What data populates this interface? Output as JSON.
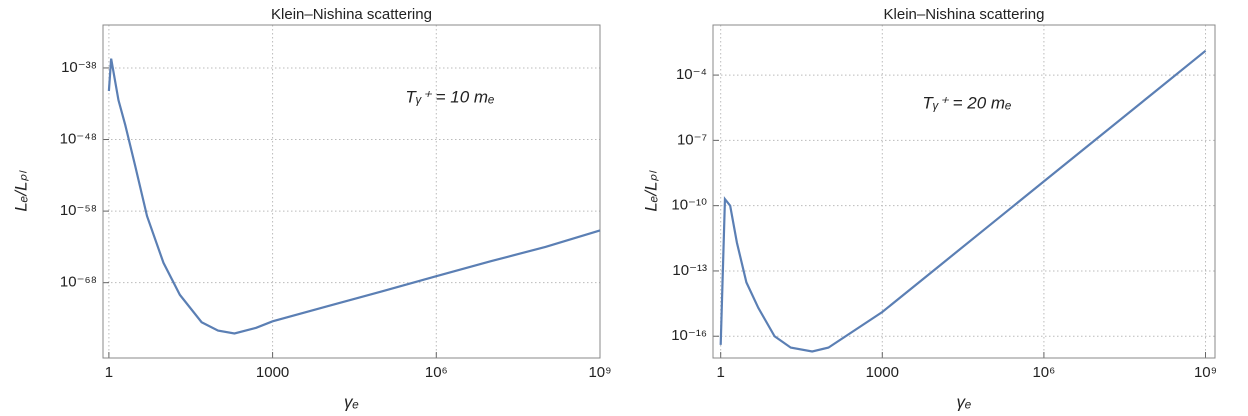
{
  "chart_data": [
    {
      "type": "line",
      "title": "Klein–Nishina scattering",
      "xlabel": "γₑ",
      "ylabel": "Lₑ/Lₚₗ",
      "annotation": "Tᵧ⁺ = 10 mₑ",
      "xscale": "log",
      "yscale": "log",
      "grid": true,
      "x": [
        1,
        1.1,
        1.5,
        2,
        3,
        5,
        10,
        20,
        50,
        100,
        200,
        500,
        1000,
        10000,
        100000,
        1000000,
        10000000,
        100000000,
        1000000000
      ],
      "series": [
        {
          "color": "#5b7fb4",
          "values": [
            6e-42,
            2e-37,
            3e-43,
            1e-46,
            3e-52,
            2e-59,
            6e-66,
            2e-70,
            3e-74,
            2e-75,
            8e-76,
            5e-75,
            4e-74,
            5e-72,
            6e-70,
            8e-68,
            1e-65,
            1e-63,
            2e-61
          ]
        }
      ],
      "xlim": [
        0.78,
        1000000000
      ],
      "ylim": [
        3e-79,
        1e-32
      ],
      "xticks": [
        1,
        1000,
        {
          "value": 1000000,
          "label": "10⁶"
        },
        {
          "value": 1000000000,
          "label": "10⁹"
        }
      ],
      "yticks": [
        {
          "value": 1e-38,
          "label": "10⁻³⁸"
        },
        {
          "value": 1e-48,
          "label": "10⁻⁴⁸"
        },
        {
          "value": 1e-58,
          "label": "10⁻⁵⁸"
        },
        {
          "value": 1e-68,
          "label": "10⁻⁶⁸"
        }
      ]
    },
    {
      "type": "line",
      "title": "Klein–Nishina scattering",
      "xlabel": "γₑ",
      "ylabel": "Lₑ/Lₚₗ",
      "annotation": "Tᵧ⁺ = 20 mₑ",
      "xscale": "log",
      "yscale": "log",
      "grid": true,
      "x": [
        1,
        1.2,
        1.5,
        2,
        3,
        5,
        10,
        20,
        50,
        100,
        1000,
        10000,
        100000,
        1000000,
        10000000,
        100000000,
        1000000000
      ],
      "series": [
        {
          "color": "#5b7fb4",
          "values": [
            4e-17,
            2e-10,
            1e-10,
            2e-12,
            3e-14,
            2e-15,
            1e-16,
            3e-17,
            2e-17,
            3e-17,
            1.3e-15,
            1.3e-13,
            1.3e-11,
            1.3e-09,
            1.3e-07,
            1.3e-05,
            0.0013
          ]
        }
      ],
      "xlim": [
        0.72,
        1500000000
      ],
      "ylim": [
        1e-17,
        0.02
      ],
      "xticks": [
        1,
        1000,
        {
          "value": 1000000,
          "label": "10⁶"
        },
        {
          "value": 1000000000,
          "label": "10⁹"
        }
      ],
      "yticks": [
        {
          "value": 0.0001,
          "label": "10⁻⁴"
        },
        {
          "value": 1e-07,
          "label": "10⁻⁷"
        },
        {
          "value": 1e-10,
          "label": "10⁻¹⁰"
        },
        {
          "value": 1e-13,
          "label": "10⁻¹³"
        },
        {
          "value": 1e-16,
          "label": "10⁻¹⁶"
        }
      ]
    }
  ]
}
